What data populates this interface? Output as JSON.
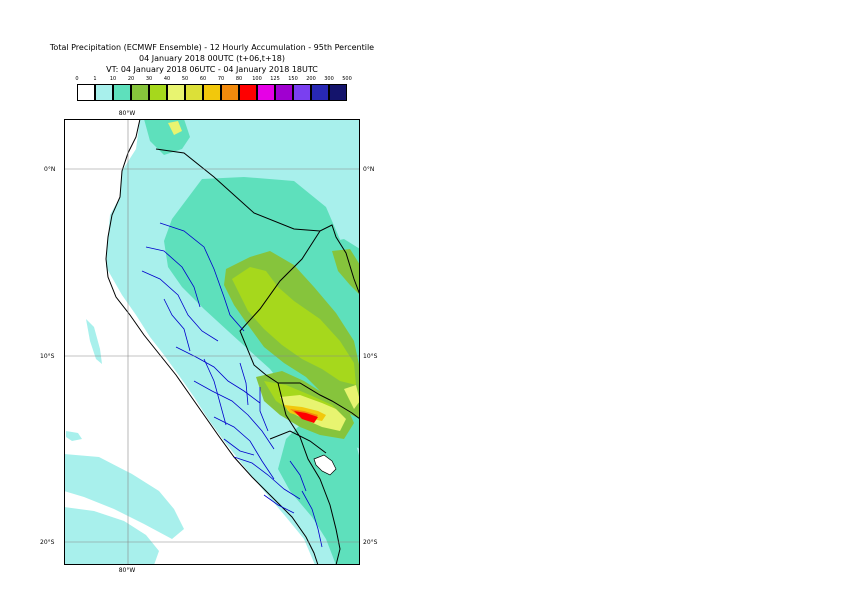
{
  "title": {
    "line1": "Total Precipitation (ECMWF Ensemble) - 12 Hourly Accumulation - 95th Percentile",
    "line2": "04 January 2018 00UTC (t+06,t+18)",
    "line3": "VT: 04 January 2018 06UTC - 04 January 2018 18UTC"
  },
  "legend": {
    "thresholds": [
      "0",
      "1",
      "10",
      "20",
      "30",
      "40",
      "50",
      "60",
      "70",
      "80",
      "100",
      "125",
      "150",
      "200",
      "300",
      "500"
    ],
    "colors": [
      "#ffffff",
      "#a8f0ec",
      "#5ee0bc",
      "#86c43c",
      "#a6d81c",
      "#e8f470",
      "#dce038",
      "#f2c80c",
      "#f28a0c",
      "#ff0000",
      "#e600e6",
      "#a000d0",
      "#7a40f0",
      "#2828b4",
      "#14146c"
    ]
  },
  "map": {
    "lat_labels": {
      "top": "0°N",
      "middle": "10°S",
      "bottom": "20°S"
    },
    "lon_labels": {
      "top": "80°W",
      "bottom": "80°W"
    },
    "colors": {
      "land_base": "#a8f0ec",
      "band_10": "#5ee0bc",
      "band_20": "#86c43c",
      "band_30": "#a6d81c",
      "band_40": "#e8f470",
      "band_60": "#f2c80c",
      "band_70": "#f28a0c",
      "band_80": "#ff0000",
      "band_100": "#e600e6",
      "coastline": "#000000",
      "admin_boundaries": "#0000cc",
      "gridlines": "#888888"
    }
  }
}
